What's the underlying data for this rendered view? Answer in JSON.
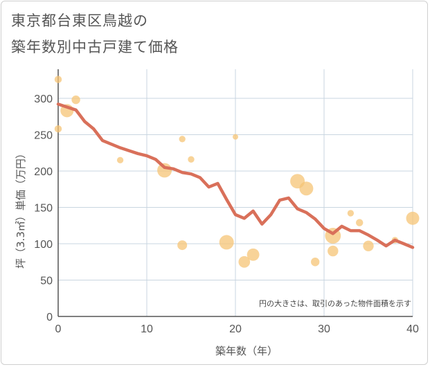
{
  "chart_data": {
    "type": "scatter",
    "title_line1": "東京都台東区鳥越の",
    "title_line2": "築年数別中古戸建て価格",
    "xlabel": "築年数（年）",
    "ylabel": "坪（3.3㎡）単価（万円）",
    "xlim": [
      0,
      40
    ],
    "ylim": [
      0,
      340
    ],
    "xticks": [
      0,
      10,
      20,
      30,
      40
    ],
    "yticks": [
      0,
      50,
      100,
      150,
      200,
      250,
      300
    ],
    "note": "円の大きさは、取引のあった物件面積を示す",
    "colors": {
      "bubble": "#f5c475",
      "trend": "#d9705a",
      "grid": "#c9d6e0",
      "axis": "#555555"
    },
    "scatter": [
      {
        "x": 0,
        "y": 326,
        "size": 2
      },
      {
        "x": 0,
        "y": 258,
        "size": 2
      },
      {
        "x": 1,
        "y": 283,
        "size": 8
      },
      {
        "x": 2,
        "y": 298,
        "size": 3
      },
      {
        "x": 7,
        "y": 215,
        "size": 1.5
      },
      {
        "x": 12,
        "y": 201,
        "size": 10
      },
      {
        "x": 14,
        "y": 244,
        "size": 1.5
      },
      {
        "x": 14,
        "y": 98,
        "size": 4
      },
      {
        "x": 15,
        "y": 216,
        "size": 1.5
      },
      {
        "x": 19,
        "y": 102,
        "size": 10
      },
      {
        "x": 20,
        "y": 247,
        "size": 1
      },
      {
        "x": 21,
        "y": 75,
        "size": 6
      },
      {
        "x": 22,
        "y": 85,
        "size": 7
      },
      {
        "x": 27,
        "y": 186,
        "size": 10
      },
      {
        "x": 28,
        "y": 176,
        "size": 9
      },
      {
        "x": 29,
        "y": 75,
        "size": 3
      },
      {
        "x": 31,
        "y": 111,
        "size": 12
      },
      {
        "x": 31,
        "y": 90,
        "size": 5
      },
      {
        "x": 33,
        "y": 142,
        "size": 1.5
      },
      {
        "x": 34,
        "y": 129,
        "size": 2
      },
      {
        "x": 35,
        "y": 97,
        "size": 5
      },
      {
        "x": 38,
        "y": 105,
        "size": 1.5
      },
      {
        "x": 40,
        "y": 135,
        "size": 8
      }
    ],
    "trend_x": [
      0,
      1,
      2,
      3,
      4,
      5,
      6,
      7,
      8,
      9,
      10,
      11,
      12,
      13,
      14,
      15,
      16,
      17,
      18,
      19,
      20,
      21,
      22,
      23,
      24,
      25,
      26,
      27,
      28,
      29,
      30,
      31,
      32,
      33,
      34,
      35,
      36,
      37,
      38,
      39,
      40
    ],
    "trend_y": [
      292,
      288,
      284,
      268,
      258,
      242,
      237,
      232,
      228,
      224,
      221,
      216,
      205,
      203,
      198,
      196,
      191,
      178,
      183,
      161,
      140,
      135,
      145,
      127,
      140,
      160,
      163,
      148,
      143,
      134,
      121,
      114,
      124,
      118,
      118,
      112,
      105,
      97,
      105,
      100,
      95
    ]
  }
}
